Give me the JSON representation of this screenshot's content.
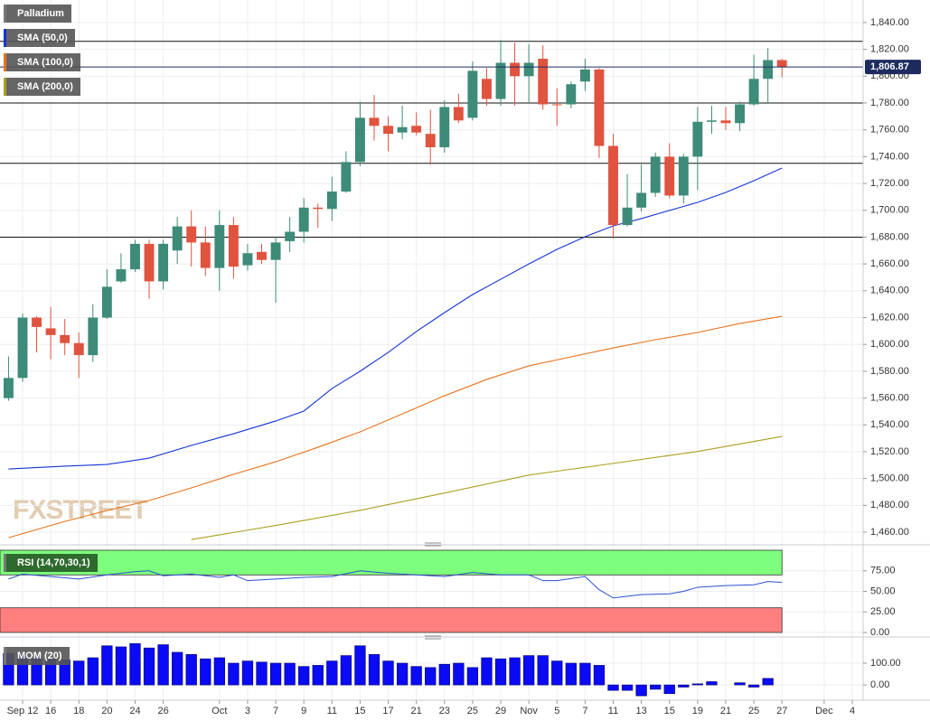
{
  "watermark": "FXSTREET",
  "chart_data": [
    {
      "type": "candlestick",
      "title": "Palladium",
      "up_color": "#3d8b78",
      "down_color": "#e0533f",
      "grid": true,
      "xlim": [
        -1.607,
        59.77
      ],
      "ylim": [
        1452.6,
        1856.8
      ],
      "yticks": [
        {
          "value": 1460,
          "label": "1,460.00"
        },
        {
          "value": 1480,
          "label": "1,480.00"
        },
        {
          "value": 1500,
          "label": "1,500.00"
        },
        {
          "value": 1520,
          "label": "1,520.00"
        },
        {
          "value": 1540,
          "label": "1,540.00"
        },
        {
          "value": 1560,
          "label": "1,560.00"
        },
        {
          "value": 1580,
          "label": "1,580.00"
        },
        {
          "value": 1600,
          "label": "1,600.00"
        },
        {
          "value": 1620,
          "label": "1,620.00"
        },
        {
          "value": 1640,
          "label": "1,640.00"
        },
        {
          "value": 1660,
          "label": "1,660.00"
        },
        {
          "value": 1680,
          "label": "1,680.00"
        },
        {
          "value": 1700,
          "label": "1,700.00"
        },
        {
          "value": 1720,
          "label": "1,720.00"
        },
        {
          "value": 1740,
          "label": "1,740.00"
        },
        {
          "value": 1760,
          "label": "1,760.00"
        },
        {
          "value": 1780,
          "label": "1,780.00"
        },
        {
          "value": 1800,
          "label": "1,800.00"
        },
        {
          "value": 1820,
          "label": "1,820.00"
        },
        {
          "value": 1840,
          "label": "1,840.00"
        }
      ],
      "x": [
        -1,
        0,
        1,
        2,
        3,
        4,
        5,
        6,
        7,
        8,
        9,
        10,
        11,
        12,
        13,
        14,
        15,
        16,
        17,
        18,
        19,
        20,
        21,
        22,
        23,
        24,
        25,
        26,
        27,
        28,
        29,
        30,
        31,
        32,
        33,
        34,
        35,
        36,
        37,
        38,
        39,
        40,
        41,
        42,
        43,
        44,
        45,
        46,
        47,
        48,
        49,
        50,
        51,
        52,
        53,
        54
      ],
      "open": [
        1560,
        1575,
        1620,
        1612,
        1607,
        1601,
        1592,
        1620,
        1647,
        1656,
        1675,
        1647,
        1670,
        1688,
        1676,
        1657,
        1689,
        1659,
        1669,
        1663,
        1677,
        1684,
        1702,
        1701,
        1714,
        1736,
        1769,
        1763,
        1758,
        1763,
        1757,
        1747,
        1777,
        1769,
        1798,
        1783,
        1810,
        1800,
        1813,
        1779,
        1779,
        1796,
        1805,
        1748,
        1689,
        1702,
        1713,
        1740,
        1711,
        1740,
        1766,
        1767,
        1765,
        1779,
        1798,
        1812
      ],
      "high": [
        1591,
        1623,
        1621,
        1628,
        1619,
        1609,
        1630,
        1656,
        1668,
        1678,
        1678,
        1678,
        1695,
        1700,
        1688,
        1700,
        1695,
        1675,
        1675,
        1680,
        1695,
        1709,
        1705,
        1725,
        1744,
        1781,
        1786,
        1770,
        1778,
        1773,
        1775,
        1782,
        1787,
        1811,
        1806,
        1827,
        1825,
        1824,
        1823,
        1791,
        1796,
        1813,
        1806,
        1757,
        1727,
        1734,
        1743,
        1750,
        1742,
        1777,
        1778,
        1777,
        1781,
        1816,
        1821,
        1813
      ],
      "low": [
        1558,
        1572,
        1594,
        1589,
        1592,
        1575,
        1587,
        1619,
        1646,
        1654,
        1634,
        1641,
        1660,
        1658,
        1651,
        1640,
        1649,
        1655,
        1660,
        1631,
        1669,
        1676,
        1687,
        1692,
        1713,
        1733,
        1752,
        1744,
        1753,
        1756,
        1734,
        1743,
        1765,
        1767,
        1778,
        1778,
        1778,
        1780,
        1775,
        1763,
        1776,
        1789,
        1739,
        1679,
        1688,
        1699,
        1710,
        1709,
        1705,
        1715,
        1757,
        1760,
        1759,
        1778,
        1780,
        1799
      ],
      "close": [
        1575,
        1620,
        1613,
        1607,
        1601,
        1592,
        1620,
        1643,
        1656,
        1675,
        1647,
        1675,
        1688,
        1676,
        1657,
        1689,
        1658,
        1668,
        1663,
        1676,
        1684,
        1702,
        1701,
        1714,
        1736,
        1769,
        1763,
        1757,
        1762,
        1758,
        1747,
        1777,
        1767,
        1804,
        1783,
        1810,
        1800,
        1810,
        1779,
        1778.5,
        1794,
        1805,
        1748,
        1689,
        1702,
        1713,
        1740,
        1711,
        1740,
        1766,
        1767,
        1765,
        1779,
        1798,
        1812,
        1806.87
      ],
      "last_price": {
        "value": 1806.87,
        "label": "1,806.87"
      },
      "last_price_color": "#1d2b5e",
      "hlines": [
        1826,
        1780,
        1735,
        1680
      ],
      "overlays": [
        {
          "name": "SMA (50,0)",
          "color": "#1434d4",
          "x": [
            -1,
            3,
            6,
            9,
            12,
            15,
            18,
            20,
            22,
            24,
            26,
            28,
            30,
            32,
            34,
            36,
            38,
            40,
            42,
            44,
            46,
            48,
            50,
            52,
            54
          ],
          "values": [
            1507.1,
            1509.2,
            1510.5,
            1515.2,
            1524.7,
            1533.4,
            1542.9,
            1550.3,
            1567.1,
            1580,
            1594,
            1609.6,
            1623.7,
            1637.2,
            1648.6,
            1660,
            1670.9,
            1680.3,
            1688.4,
            1693.8,
            1699.9,
            1705.9,
            1713.3,
            1722.1,
            1731.5
          ]
        },
        {
          "name": "SMA (100,0)",
          "color": "#e8731c",
          "x": [
            -1,
            3,
            6,
            9,
            12,
            15,
            18,
            21,
            24,
            27,
            30,
            33,
            36,
            39,
            42,
            45,
            48,
            51,
            54
          ],
          "values": [
            1455.9,
            1468,
            1476.1,
            1483.6,
            1493,
            1503.1,
            1512.5,
            1523.3,
            1534.8,
            1548.2,
            1561.7,
            1573.9,
            1584,
            1590.7,
            1597.4,
            1603.5,
            1608.9,
            1615.6,
            1621
          ]
        },
        {
          "name": "SMA (200,0)",
          "color": "#aaa022",
          "x": [
            12,
            18,
            24,
            30,
            36,
            42,
            48,
            54
          ],
          "values": [
            1454.5,
            1465,
            1476.3,
            1489.2,
            1502.6,
            1511.3,
            1520.2,
            1531.4
          ]
        }
      ]
    },
    {
      "type": "line",
      "title": "RSI (14,70,30,1)",
      "color": "#2a50d0",
      "grid": true,
      "xlim": [
        -1.607,
        59.77
      ],
      "ylim": [
        0,
        100
      ],
      "overbought": 70,
      "oversold": 30,
      "overbought_color": "#7dff7d",
      "oversold_color": "#ff7f7f",
      "yticks": [
        {
          "value": 0,
          "label": "0.00"
        },
        {
          "value": 25,
          "label": "25.00"
        },
        {
          "value": 50,
          "label": "50.00"
        },
        {
          "value": 75,
          "label": "75.00"
        }
      ],
      "x": [
        -1,
        0,
        2,
        4,
        6,
        8,
        9,
        10,
        12,
        14,
        15,
        16,
        18,
        20,
        22,
        24,
        26,
        28,
        30,
        32,
        34,
        36,
        37,
        38,
        40,
        41,
        42,
        44,
        46,
        47,
        48,
        50,
        52,
        53,
        54
      ],
      "values": [
        65,
        71,
        68,
        65,
        70,
        74,
        75,
        69,
        71,
        67,
        70,
        63,
        65,
        67,
        68,
        75,
        72,
        70,
        68,
        73,
        70,
        70,
        63,
        63,
        68,
        52,
        42,
        46,
        47,
        50,
        55,
        57,
        58,
        62,
        61
      ]
    },
    {
      "type": "bar",
      "title": "MOM (20)",
      "color": "#0a0af5",
      "grid": true,
      "xlim": [
        -1.607,
        59.77
      ],
      "ylim": [
        -62,
        208
      ],
      "yticks": [
        {
          "value": 0,
          "label": "0.00"
        },
        {
          "value": 100,
          "label": "100.00"
        }
      ],
      "x": [
        -1,
        0,
        1,
        2,
        3,
        4,
        5,
        6,
        7,
        8,
        9,
        10,
        11,
        12,
        13,
        14,
        15,
        16,
        17,
        18,
        19,
        20,
        21,
        22,
        23,
        24,
        25,
        26,
        27,
        28,
        29,
        30,
        31,
        32,
        33,
        34,
        35,
        36,
        37,
        38,
        39,
        40,
        41,
        42,
        43,
        44,
        45,
        46,
        47,
        48,
        49,
        50,
        51,
        52,
        53,
        54
      ],
      "values": [
        145,
        140,
        130,
        120,
        115,
        110,
        125,
        180,
        175,
        190,
        170,
        185,
        150,
        140,
        120,
        125,
        100,
        110,
        105,
        100,
        100,
        85,
        90,
        110,
        135,
        180,
        140,
        110,
        100,
        85,
        80,
        95,
        100,
        80,
        125,
        120,
        125,
        135,
        135,
        110,
        100,
        100,
        90,
        -25,
        -25,
        -50,
        -20,
        -40,
        -10,
        5,
        15,
        0,
        10,
        -10,
        30,
        null
      ],
      "xticks": [
        {
          "value": 0,
          "label": "Sep 12"
        },
        {
          "value": 2,
          "label": "16"
        },
        {
          "value": 4,
          "label": "18"
        },
        {
          "value": 6,
          "label": "20"
        },
        {
          "value": 8,
          "label": "24"
        },
        {
          "value": 10,
          "label": "26"
        },
        {
          "value": 14,
          "label": "Oct"
        },
        {
          "value": 16,
          "label": "3"
        },
        {
          "value": 18,
          "label": "7"
        },
        {
          "value": 20,
          "label": "9"
        },
        {
          "value": 22,
          "label": "11"
        },
        {
          "value": 24,
          "label": "15"
        },
        {
          "value": 26,
          "label": "17"
        },
        {
          "value": 28,
          "label": "21"
        },
        {
          "value": 30,
          "label": "23"
        },
        {
          "value": 32,
          "label": "25"
        },
        {
          "value": 34,
          "label": "29"
        },
        {
          "value": 36,
          "label": "Nov"
        },
        {
          "value": 38,
          "label": "5"
        },
        {
          "value": 40,
          "label": "7"
        },
        {
          "value": 42,
          "label": "11"
        },
        {
          "value": 44,
          "label": "13"
        },
        {
          "value": 46,
          "label": "15"
        },
        {
          "value": 48,
          "label": "19"
        },
        {
          "value": 50,
          "label": "21"
        },
        {
          "value": 52,
          "label": "25"
        },
        {
          "value": 54,
          "label": "27"
        },
        {
          "value": 57,
          "label": "Dec"
        },
        {
          "value": 59,
          "label": "4"
        }
      ]
    }
  ]
}
